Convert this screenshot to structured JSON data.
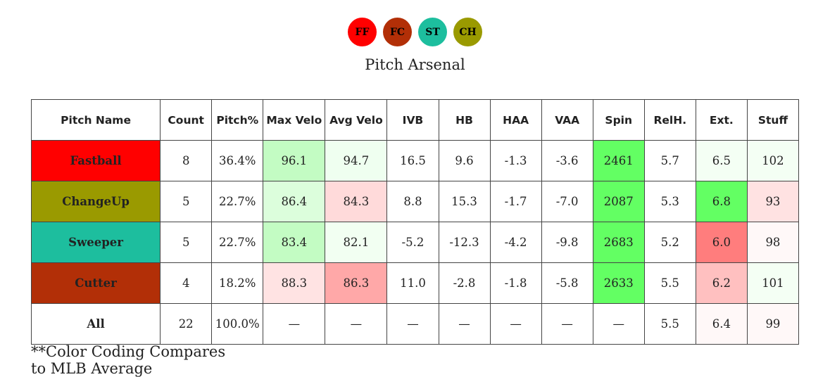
{
  "legend": [
    {
      "code": "FF",
      "color": "#ff0000"
    },
    {
      "code": "FC",
      "color": "#b22f07"
    },
    {
      "code": "ST",
      "color": "#1dbe9e"
    },
    {
      "code": "CH",
      "color": "#9a9a00"
    }
  ],
  "title": "Pitch Arsenal",
  "footnote": {
    "line1": "**Color Coding Compares",
    "line2": "to MLB Average"
  },
  "chart_data": {
    "type": "table",
    "title": "Pitch Arsenal",
    "columns": [
      "Pitch Name",
      "Count",
      "Pitch%",
      "Max Velo",
      "Avg Velo",
      "IVB",
      "HB",
      "HAA",
      "VAA",
      "Spin",
      "RelH.",
      "Ext.",
      "Stuff"
    ],
    "rows": [
      {
        "name": "Fastball",
        "name_color": "#ff0000",
        "cells": [
          "8",
          "36.4%",
          "96.1",
          "94.7",
          "16.5",
          "9.6",
          "-1.3",
          "-3.6",
          "2461",
          "5.7",
          "6.5",
          "102"
        ],
        "colors": [
          "#ffffff",
          "#ffffff",
          "#c3fcc3",
          "#effff0",
          "#ffffff",
          "#ffffff",
          "#ffffff",
          "#ffffff",
          "#63ff63",
          "#ffffff",
          "#f4fff4",
          "#f4fff4"
        ]
      },
      {
        "name": "ChangeUp",
        "name_color": "#9a9a00",
        "cells": [
          "5",
          "22.7%",
          "86.4",
          "84.3",
          "8.8",
          "15.3",
          "-1.7",
          "-7.0",
          "2087",
          "5.3",
          "6.8",
          "93"
        ],
        "colors": [
          "#ffffff",
          "#ffffff",
          "#dcfedc",
          "#ffdada",
          "#ffffff",
          "#ffffff",
          "#ffffff",
          "#ffffff",
          "#63ff63",
          "#ffffff",
          "#63ff63",
          "#ffe2e2"
        ]
      },
      {
        "name": "Sweeper",
        "name_color": "#1dbe9e",
        "cells": [
          "5",
          "22.7%",
          "83.4",
          "82.1",
          "-5.2",
          "-12.3",
          "-4.2",
          "-9.8",
          "2683",
          "5.2",
          "6.0",
          "98"
        ],
        "colors": [
          "#ffffff",
          "#ffffff",
          "#c3fcc3",
          "#f2fff2",
          "#ffffff",
          "#ffffff",
          "#ffffff",
          "#ffffff",
          "#63ff63",
          "#ffffff",
          "#ff7d7d",
          "#fff8f8"
        ]
      },
      {
        "name": "Cutter",
        "name_color": "#b22f07",
        "cells": [
          "4",
          "18.2%",
          "88.3",
          "86.3",
          "11.0",
          "-2.8",
          "-1.8",
          "-5.8",
          "2633",
          "5.5",
          "6.2",
          "101"
        ],
        "colors": [
          "#ffffff",
          "#ffffff",
          "#ffe3e3",
          "#ffa8a8",
          "#ffffff",
          "#ffffff",
          "#ffffff",
          "#ffffff",
          "#63ff63",
          "#ffffff",
          "#ffc0c0",
          "#f4fff4"
        ]
      },
      {
        "name": "All",
        "name_color": "#ffffff",
        "cells": [
          "22",
          "100.0%",
          "—",
          "—",
          "—",
          "—",
          "—",
          "—",
          "—",
          "5.5",
          "6.4",
          "99"
        ],
        "colors": [
          "#ffffff",
          "#ffffff",
          "#ffffff",
          "#ffffff",
          "#ffffff",
          "#ffffff",
          "#ffffff",
          "#ffffff",
          "#ffffff",
          "#ffffff",
          "#fff8f8",
          "#fff8f8"
        ]
      }
    ]
  }
}
